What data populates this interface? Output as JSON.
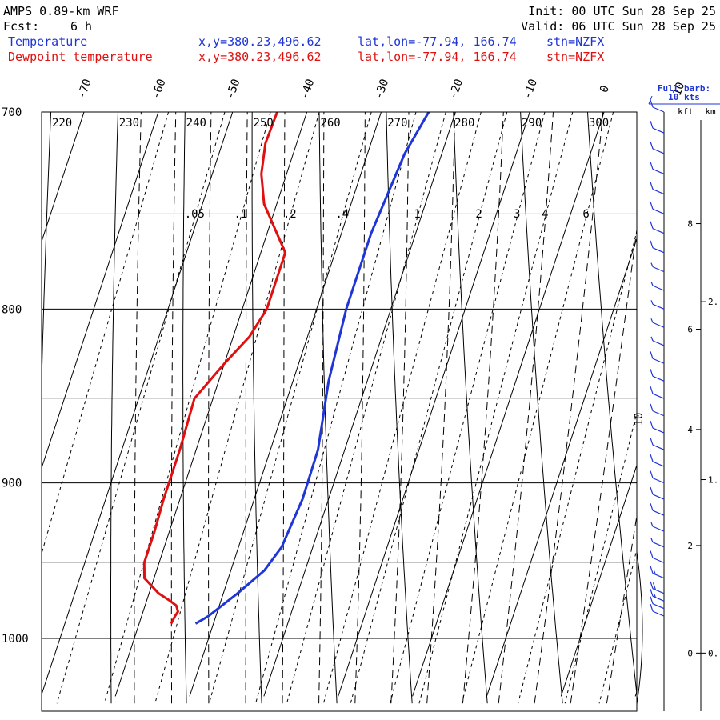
{
  "header": {
    "model": "AMPS 0.89-km WRF",
    "fcst_label": "Fcst:",
    "fcst_value": "6 h",
    "init": "Init: 00 UTC Sun 28 Sep 25",
    "valid": "Valid: 06 UTC Sun 28 Sep 25"
  },
  "legend": [
    {
      "label": "Temperature",
      "location": "x,y=380.23,496.62",
      "latlon": "lat,lon=-77.94, 166.74",
      "station": "stn=NZFX",
      "color": "#1f35d6"
    },
    {
      "label": "Dewpoint temperature",
      "location": "x,y=380.23,496.62",
      "latlon": "lat,lon=-77.94, 166.74",
      "station": "stn=NZFX",
      "color": "#e01010"
    }
  ],
  "wind_panel": {
    "title_line1": "Full barb:",
    "title_line2": "10 kts",
    "units_kft": "kft",
    "units_km": "km"
  },
  "chart_data": {
    "type": "skew-t",
    "p_top": 700,
    "p_bottom": 1040,
    "skew_deg_per_log10p": 150,
    "pressure_labels": [
      "700",
      "800",
      "900",
      "1000"
    ],
    "pressure_levels": [
      700,
      800,
      900,
      1000
    ],
    "minor_isobars": [
      750,
      850,
      950
    ],
    "isotherm_labels": [
      "-70",
      "-60",
      "-50",
      "-40",
      "-30",
      "-20",
      "-10",
      "0",
      "10"
    ],
    "isotherm_values": [
      -70,
      -60,
      -50,
      -40,
      -30,
      -20,
      -10,
      0,
      10
    ],
    "isotherm_range": [
      -140,
      40
    ],
    "theta_labels": [
      "220",
      "230",
      "240",
      "250",
      "260",
      "270",
      "280",
      "290",
      "300"
    ],
    "theta_values": [
      220,
      230,
      240,
      250,
      260,
      270,
      280,
      290,
      300
    ],
    "dry_adiabat_range": [
      170,
      360
    ],
    "mixing_ratio_labels": [
      ".05",
      ".1",
      ".2",
      ".4",
      "1",
      "2",
      "3",
      "4",
      "6"
    ],
    "mixing_ratio_values": [
      0.05,
      0.1,
      0.2,
      0.4,
      1,
      2,
      3,
      4,
      6
    ],
    "mixing_ratio_extra": [
      0.02,
      0.7,
      1.5,
      10,
      15,
      20
    ],
    "series": [
      {
        "name": "Temperature",
        "color": "#1f35d6",
        "pressure": [
          700,
          720,
          760,
          800,
          840,
          880,
          910,
          940,
          955,
          970,
          985,
          990
        ],
        "temperature": [
          -23.6,
          -25.0,
          -26.0,
          -26.0,
          -25.2,
          -23.6,
          -23.5,
          -24.2,
          -25.5,
          -28.1,
          -31.0,
          -32.4
        ]
      },
      {
        "name": "Dewpoint temperature",
        "color": "#e01010",
        "pressure": [
          700,
          715,
          730,
          745,
          770,
          800,
          815,
          830,
          850,
          880,
          910,
          930,
          950,
          960,
          970,
          975,
          978,
          982,
          985,
          990
        ],
        "temperature": [
          -44.0,
          -44.2,
          -43.4,
          -41.7,
          -36.7,
          -36.7,
          -37.8,
          -40.0,
          -42.5,
          -42.2,
          -42.2,
          -42.0,
          -42.0,
          -41.3,
          -38.7,
          -36.8,
          -35.8,
          -35.3,
          -35.5,
          -35.7
        ]
      }
    ],
    "wind_levels": [
      700,
      710,
      720,
      730,
      740,
      750,
      760,
      770,
      780,
      790,
      800,
      810,
      820,
      830,
      840,
      850,
      860,
      870,
      880,
      890,
      900,
      910,
      920,
      930,
      940,
      950,
      960,
      970,
      975,
      980,
      985
    ],
    "wind_speed_kts": [
      10,
      10,
      12,
      12,
      10,
      10,
      10,
      10,
      8,
      8,
      8,
      8,
      8,
      10,
      10,
      10,
      10,
      10,
      10,
      10,
      10,
      10,
      10,
      8,
      8,
      10,
      15,
      20,
      15,
      10,
      12
    ],
    "height_ticks_kft": [
      {
        "label": "8",
        "p": 755
      },
      {
        "label": "6",
        "p": 811
      },
      {
        "label": "4",
        "p": 868
      },
      {
        "label": "2",
        "p": 939
      },
      {
        "label": "0",
        "p": 1010
      }
    ],
    "height_ticks_km": [
      {
        "label": "2.",
        "p": 796
      },
      {
        "label": "1.",
        "p": 898
      },
      {
        "label": "0.",
        "p": 1010
      }
    ],
    "hodo_ring_label": "10"
  }
}
